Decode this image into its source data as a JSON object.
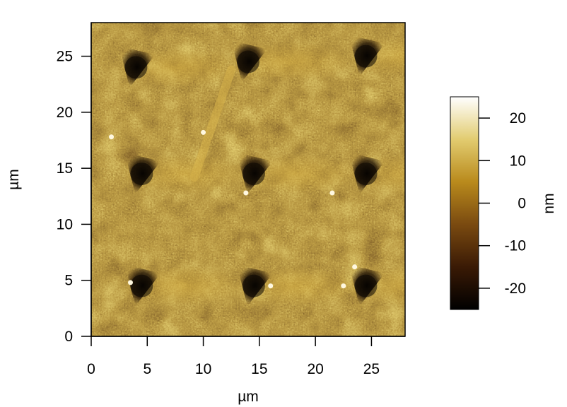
{
  "chart_data": {
    "type": "heatmap",
    "title": "",
    "xlabel": "µm",
    "ylabel": "µm",
    "xlim": [
      0,
      28
    ],
    "ylim": [
      0,
      28
    ],
    "x_ticks": [
      0,
      5,
      10,
      15,
      20,
      25
    ],
    "y_ticks": [
      0,
      5,
      10,
      15,
      20,
      25
    ],
    "x_tick_labels": [
      "0",
      "5",
      "10",
      "15",
      "20",
      "25"
    ],
    "y_tick_labels": [
      "0",
      "5",
      "10",
      "15",
      "20",
      "25"
    ],
    "colorbar": {
      "label": "nm",
      "range": [
        -25,
        25
      ],
      "ticks": [
        20,
        10,
        0,
        -10,
        -20
      ],
      "tick_labels": [
        "20",
        "10",
        "0",
        "-10",
        "-20"
      ],
      "colormap": [
        "#000000",
        "#3a1a05",
        "#7a4a10",
        "#b98a1c",
        "#e2cc70",
        "#ffffff"
      ]
    },
    "features": {
      "dark_triangular_pits_um": [
        [
          4,
          24
        ],
        [
          14,
          24.5
        ],
        [
          24.5,
          25
        ],
        [
          4.5,
          14.5
        ],
        [
          14.5,
          14.5
        ],
        [
          24.5,
          14.5
        ],
        [
          4.5,
          4.5
        ],
        [
          14.5,
          4.5
        ],
        [
          24.5,
          4.5
        ]
      ],
      "bright_particles_um": [
        [
          1.8,
          17.8
        ],
        [
          13.8,
          12.8
        ],
        [
          21.5,
          12.8
        ],
        [
          10,
          18.2
        ],
        [
          23.5,
          6.2
        ],
        [
          22.5,
          4.5
        ],
        [
          16,
          4.5
        ],
        [
          3.5,
          4.8
        ]
      ],
      "fiber_segment_um": [
        [
          9.2,
          14.2
        ],
        [
          12.5,
          23.8
        ]
      ]
    }
  }
}
